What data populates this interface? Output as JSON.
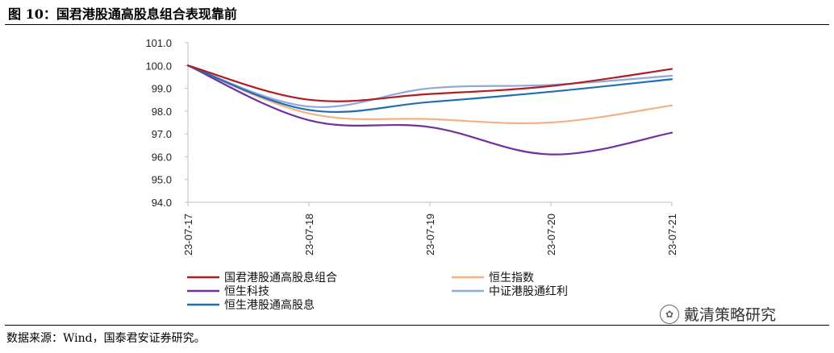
{
  "header": {
    "title": "图  10：国君港股通高股息组合表现靠前"
  },
  "footer": {
    "source": "数据来源：Wind，国泰君安证券研究。",
    "watermark": "戴清策略研究"
  },
  "chart_data": {
    "type": "line",
    "title": "国君港股通高股息组合表现靠前",
    "categories": [
      "23-07-17",
      "23-07-18",
      "23-07-19",
      "23-07-20",
      "23-07-21"
    ],
    "ylim": [
      94.0,
      101.0
    ],
    "yticks": [
      "94.0",
      "95.0",
      "96.0",
      "97.0",
      "98.0",
      "99.0",
      "100.0",
      "101.0"
    ],
    "ytick_values": [
      94,
      95,
      96,
      97,
      98,
      99,
      100,
      101
    ],
    "grid": false,
    "legend_position": "bottom",
    "series": [
      {
        "name": "国君港股通高股息组合",
        "color": "#B01E23",
        "values": [
          100.0,
          98.5,
          98.75,
          99.1,
          99.85
        ]
      },
      {
        "name": "恒生指数",
        "color": "#F4B183",
        "values": [
          100.0,
          97.9,
          97.65,
          97.5,
          98.25
        ]
      },
      {
        "name": "恒生科技",
        "color": "#7030A0",
        "values": [
          100.0,
          97.6,
          97.3,
          96.1,
          97.05
        ]
      },
      {
        "name": "中证港股通红利",
        "color": "#8EA9DB",
        "values": [
          100.0,
          98.2,
          99.0,
          99.15,
          99.55
        ]
      },
      {
        "name": "恒生港股通高股息",
        "color": "#1F6EB4",
        "values": [
          100.0,
          98.05,
          98.4,
          98.85,
          99.4
        ]
      }
    ]
  }
}
